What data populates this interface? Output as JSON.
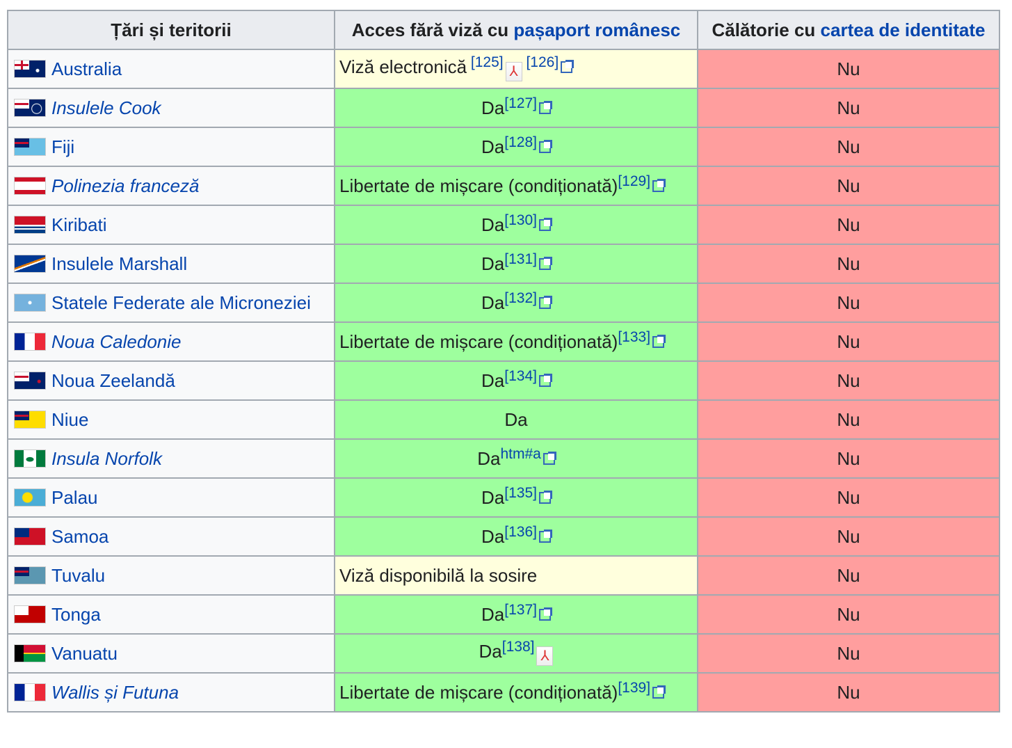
{
  "header": {
    "col1": "Țări și teritorii",
    "col2_prefix": "Acces fără viză cu ",
    "col2_link": "pașaport românesc",
    "col3_prefix": "Călătorie cu ",
    "col3_link": "cartea de identitate"
  },
  "colors": {
    "green": "#9eff9e",
    "red": "#ff9e9e",
    "yellow": "#ffffdd",
    "link": "#0645ad"
  },
  "rows": [
    {
      "country": "Australia",
      "italic": false,
      "flag": "australia",
      "access": "Viză electronică",
      "type": "maybe",
      "refs": [
        {
          "text": " [125]",
          "icon": "pdf"
        },
        {
          "text": " [126]",
          "icon": "ext"
        }
      ],
      "id": "Nu"
    },
    {
      "country": "Insulele Cook",
      "italic": true,
      "flag": "cook",
      "access": "Da",
      "type": "yes",
      "refs": [
        {
          "text": "[127]",
          "icon": "ext"
        }
      ],
      "id": "Nu"
    },
    {
      "country": "Fiji",
      "italic": false,
      "flag": "fiji",
      "access": "Da",
      "type": "yes",
      "refs": [
        {
          "text": "[128]",
          "icon": "ext"
        }
      ],
      "id": "Nu"
    },
    {
      "country": "Polinezia franceză",
      "italic": true,
      "flag": "polynesia",
      "access": "Libertate de mișcare (condiționată)",
      "type": "yes-left",
      "refs": [
        {
          "text": "[129]",
          "icon": "ext"
        }
      ],
      "id": "Nu"
    },
    {
      "country": "Kiribati",
      "italic": false,
      "flag": "kiribati",
      "access": "Da",
      "type": "yes",
      "refs": [
        {
          "text": "[130]",
          "icon": "ext"
        }
      ],
      "id": "Nu"
    },
    {
      "country": "Insulele Marshall",
      "italic": false,
      "flag": "marshall",
      "access": "Da",
      "type": "yes",
      "refs": [
        {
          "text": "[131]",
          "icon": "ext"
        }
      ],
      "id": "Nu"
    },
    {
      "country": "Statele Federate ale Microneziei",
      "italic": false,
      "flag": "micronesia",
      "access": "Da",
      "type": "yes",
      "refs": [
        {
          "text": "[132]",
          "icon": "ext"
        }
      ],
      "id": "Nu"
    },
    {
      "country": "Noua Caledonie",
      "italic": true,
      "flag": "france",
      "access": "Libertate de mișcare (condiționată)",
      "type": "yes-left",
      "refs": [
        {
          "text": "[133]",
          "icon": "ext"
        }
      ],
      "id": "Nu"
    },
    {
      "country": "Noua Zeelandă",
      "italic": false,
      "flag": "newzealand",
      "access": "Da",
      "type": "yes",
      "refs": [
        {
          "text": "[134]",
          "icon": "ext"
        }
      ],
      "id": "Nu"
    },
    {
      "country": "Niue",
      "italic": false,
      "flag": "niue",
      "access": "Da",
      "type": "yes",
      "refs": [],
      "id": "Nu"
    },
    {
      "country": "Insula Norfolk",
      "italic": true,
      "flag": "norfolk",
      "access": "Da",
      "type": "yes",
      "refs": [
        {
          "text": "htm#a",
          "icon": "ext"
        }
      ],
      "id": "Nu"
    },
    {
      "country": "Palau",
      "italic": false,
      "flag": "palau",
      "access": "Da",
      "type": "yes",
      "refs": [
        {
          "text": "[135]",
          "icon": "ext"
        }
      ],
      "id": "Nu"
    },
    {
      "country": "Samoa",
      "italic": false,
      "flag": "samoa",
      "access": "Da",
      "type": "yes",
      "refs": [
        {
          "text": "[136]",
          "icon": "ext"
        }
      ],
      "id": "Nu"
    },
    {
      "country": "Tuvalu",
      "italic": false,
      "flag": "tuvalu",
      "access": "Viză disponibilă la sosire",
      "type": "maybe",
      "refs": [],
      "id": "Nu"
    },
    {
      "country": "Tonga",
      "italic": false,
      "flag": "tonga",
      "access": "Da",
      "type": "yes",
      "refs": [
        {
          "text": "[137]",
          "icon": "ext"
        }
      ],
      "id": "Nu"
    },
    {
      "country": "Vanuatu",
      "italic": false,
      "flag": "vanuatu",
      "access": "Da",
      "type": "yes",
      "refs": [
        {
          "text": "[138]",
          "icon": "pdf"
        }
      ],
      "id": "Nu"
    },
    {
      "country": "Wallis și Futuna",
      "italic": true,
      "flag": "france",
      "access": "Libertate de mișcare (condiționată)",
      "type": "yes-left",
      "refs": [
        {
          "text": "[139]",
          "icon": "ext"
        }
      ],
      "id": "Nu"
    }
  ]
}
